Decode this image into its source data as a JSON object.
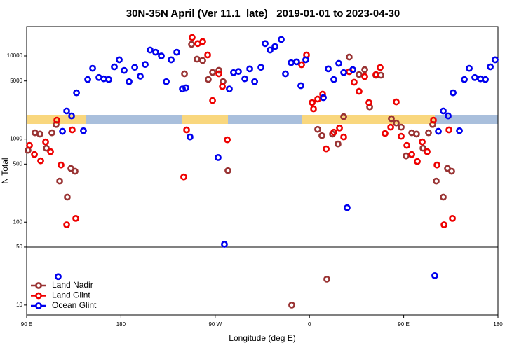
{
  "chart_data": {
    "type": "scatter",
    "title": "30N-35N April (Ver 11.1_late)   2019-01-01 to 2023-04-30",
    "x_label": "Longitude (deg E)",
    "y_label": "N Total",
    "log_y": true,
    "xlim": [
      90,
      540
    ],
    "xticks": [
      {
        "value": 90,
        "label": "90 E"
      },
      180,
      {
        "value": 270,
        "label": "90 W"
      },
      {
        "value": 360,
        "label": "0"
      },
      {
        "value": 450,
        "label": "90 E"
      },
      {
        "value": 540,
        "label": "180"
      }
    ],
    "ylim": [
      7.6,
      22600
    ],
    "yticks": [
      10,
      50,
      100,
      500,
      1000,
      5000,
      10000
    ],
    "hline": 50,
    "legend": "lower left",
    "series": [
      {
        "name": "Land Nadir",
        "color": "#993333",
        "x": [
          91.3,
          98,
          102.7,
          108.8,
          114.1,
          118.1,
          121.5,
          128.8,
          132.2,
          136.2,
          240.7,
          247.4,
          252.7,
          258.1,
          263.4,
          267.5,
          273.5,
          277.5,
          282.2,
          343.1,
          367.9,
          371.9,
          376.6,
          382,
          387.3,
          392.7,
          398,
          407.4,
          412.8,
          417.5,
          423.5,
          428.2,
          438.2,
          442.9,
          447.6,
          452.3,
          457.7,
          462.3,
          468.4,
          473.7,
          477.7,
          481.1,
          487.8,
          491.8,
          495.8
        ],
        "values": [
          733,
          1190,
          1150,
          777,
          1190,
          1500,
          312,
          200,
          443,
          410,
          6100,
          13800,
          9160,
          8810,
          5210,
          6340,
          6720,
          4920,
          417,
          10,
          1310,
          1100,
          20.5,
          1150,
          873,
          1860,
          9700,
          5970,
          6840,
          2440,
          5860,
          5860,
          1760,
          1560,
          1390,
          627,
          1190,
          1150,
          777,
          1190,
          1500,
          312,
          200,
          443,
          410
        ]
      },
      {
        "name": "Land Glint",
        "color": "#ee0000",
        "x": [
          92.7,
          97.4,
          103.4,
          108.1,
          112.8,
          118.8,
          122.8,
          128.2,
          133.5,
          136.9,
          240,
          242.7,
          248,
          253.4,
          258.1,
          262.8,
          267.5,
          273.5,
          276.9,
          281.6,
          352.5,
          357.2,
          362.6,
          363.9,
          367.9,
          372.6,
          376,
          383.3,
          388.7,
          392.7,
          398,
          402.7,
          407.4,
          412.8,
          416.8,
          423.5,
          427.5,
          432.2,
          437.6,
          442.9,
          447.6,
          453,
          457.7,
          463,
          467.7,
          472.4,
          478.4,
          481.8,
          488.5,
          493.2,
          496.5
        ],
        "values": [
          840,
          652,
          547,
          925,
          705,
          1690,
          487,
          93,
          1290,
          111,
          350,
          1290,
          16700,
          14100,
          14900,
          10300,
          2910,
          6100,
          4290,
          981,
          7850,
          10300,
          2750,
          2310,
          3030,
          3470,
          762,
          1210,
          1360,
          1060,
          6460,
          4830,
          3750,
          5640,
          2750,
          5970,
          7260,
          1170,
          1390,
          2800,
          1080,
          840,
          652,
          537,
          925,
          705,
          1690,
          487,
          93,
          1290,
          111
        ]
      },
      {
        "name": "Ocean Glint",
        "color": "#0000ee",
        "x": [
          120.1,
          124.2,
          128.2,
          132.9,
          137.6,
          144.2,
          148.3,
          153,
          159,
          163.7,
          168.4,
          173.7,
          178.4,
          183.1,
          187.8,
          193.2,
          198.5,
          203.2,
          207.9,
          213.2,
          218.6,
          223.3,
          228,
          233.3,
          238.7,
          242,
          246,
          272.8,
          278.8,
          283.5,
          287.5,
          292.2,
          298.3,
          303,
          307.7,
          313.7,
          317.7,
          322.4,
          327.1,
          333.1,
          337.1,
          342.5,
          347.8,
          351.8,
          356.5,
          373.3,
          378,
          383.3,
          388,
          392.7,
          396,
          401.4,
          479.7,
          483.1,
          487.8,
          492.5,
          497.2,
          503.2,
          507.9,
          512.6,
          517.9,
          523.3,
          528,
          532.7,
          537.3
        ],
        "values": [
          22,
          1240,
          2180,
          1900,
          3600,
          1260,
          5200,
          7100,
          5500,
          5300,
          5200,
          7400,
          9000,
          6700,
          4900,
          7300,
          5700,
          7900,
          11800,
          11100,
          10000,
          4900,
          9000,
          11100,
          4000,
          4130,
          1060,
          600,
          54,
          4000,
          6300,
          6500,
          5300,
          7000,
          4900,
          7300,
          14100,
          11800,
          13000,
          15800,
          6100,
          8300,
          8500,
          4380,
          9000,
          3150,
          7000,
          5200,
          8150,
          6300,
          149,
          6840,
          22.6,
          1240,
          2180,
          1900,
          3600,
          1260,
          5200,
          7100,
          5500,
          5300,
          5200,
          7400,
          9000
        ]
      }
    ]
  }
}
